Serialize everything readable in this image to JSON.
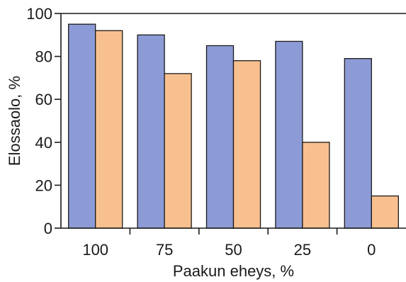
{
  "chart_data": {
    "type": "bar",
    "title": "",
    "xlabel": "Paakun eheys, %",
    "ylabel": "Elossaolo, %",
    "categories": [
      "100",
      "75",
      "50",
      "25",
      "0"
    ],
    "ylim": [
      0,
      100
    ],
    "yticks": [
      0,
      20,
      40,
      60,
      80,
      100
    ],
    "grid": false,
    "legend": "none",
    "series": [
      {
        "values": [
          95,
          90,
          85,
          87,
          79
        ],
        "color": "#8c9bd6"
      },
      {
        "values": [
          92,
          72,
          78,
          40,
          15
        ],
        "color": "#f9c08f"
      }
    ]
  }
}
